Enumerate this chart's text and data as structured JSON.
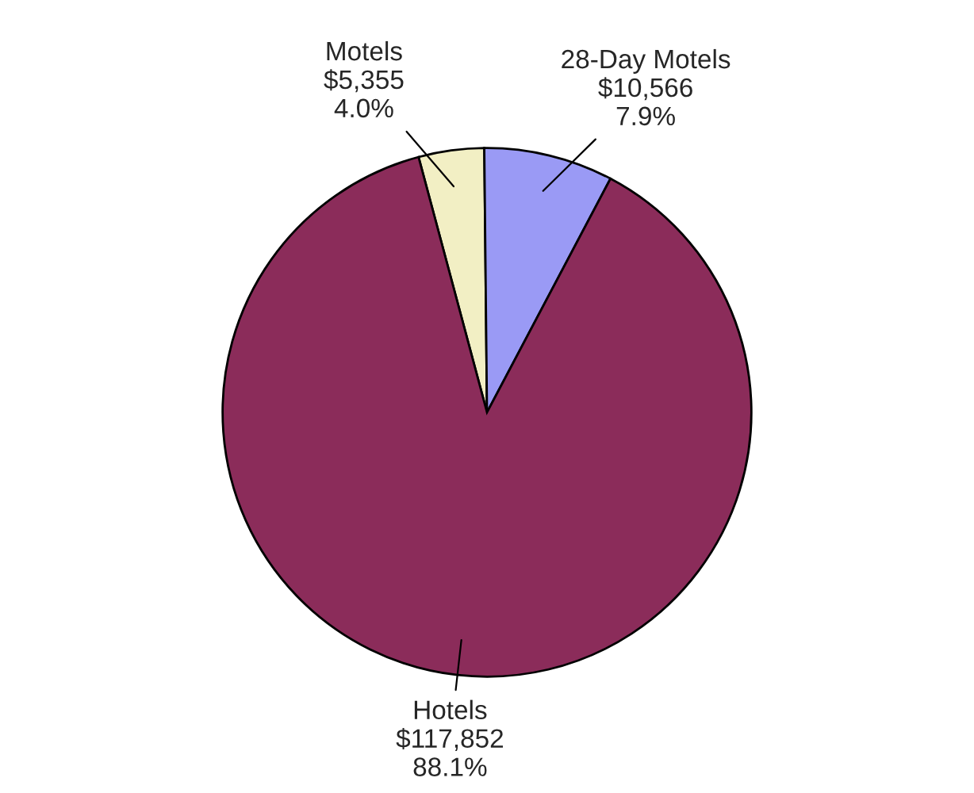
{
  "chart_data": {
    "type": "pie",
    "categories": [
      "Motels",
      "28-Day Motels",
      "Hotels"
    ],
    "values": [
      5355,
      10566,
      117852
    ],
    "value_labels": [
      "$5,355\n4.0%",
      "$10,566\n7.9%",
      "$117,852\n88.1%"
    ],
    "colors": [
      "#f2efc4",
      "#9a9af5",
      "#8b2c5a"
    ]
  }
}
